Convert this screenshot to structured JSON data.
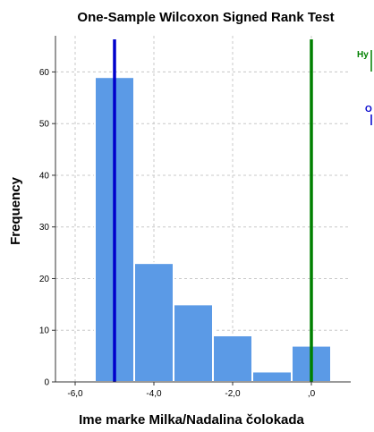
{
  "chart_data": {
    "type": "bar",
    "title": "One-Sample Wilcoxon Signed Rank Test",
    "xlabel": "Ime marke Milka/Nadalina čolokada",
    "ylabel": "Frequency",
    "xlim": [
      -6.5,
      1.0
    ],
    "ylim": [
      0,
      67
    ],
    "x_ticks": [
      -6.0,
      -4.0,
      -2.0,
      0.0
    ],
    "x_tick_labels": [
      "-6,0",
      "-4,0",
      "-2,0",
      ",0"
    ],
    "y_ticks": [
      0,
      10,
      20,
      30,
      40,
      50,
      60
    ],
    "y_tick_labels": [
      "0",
      "10",
      "20",
      "30",
      "40",
      "50",
      "60"
    ],
    "grid": true,
    "bins": [
      {
        "x0": -5.5,
        "x1": -4.5,
        "count": 59
      },
      {
        "x0": -4.5,
        "x1": -3.5,
        "count": 23
      },
      {
        "x0": -3.5,
        "x1": -2.5,
        "count": 15
      },
      {
        "x0": -2.5,
        "x1": -1.5,
        "count": 9
      },
      {
        "x0": -1.5,
        "x1": -0.5,
        "count": 2
      },
      {
        "x0": -0.5,
        "x1": 0.5,
        "count": 7
      }
    ],
    "reference_lines": [
      {
        "x": -5.0,
        "color": "#0000cc",
        "legend_fragment": "O"
      },
      {
        "x": 0.0,
        "color": "#008000",
        "legend_fragment": "Hy"
      }
    ],
    "colors": {
      "bar_fill": "#5b9ae6",
      "bar_stroke": "#ffffff",
      "grid": "#c8c8c8",
      "axis": "#333333"
    }
  }
}
